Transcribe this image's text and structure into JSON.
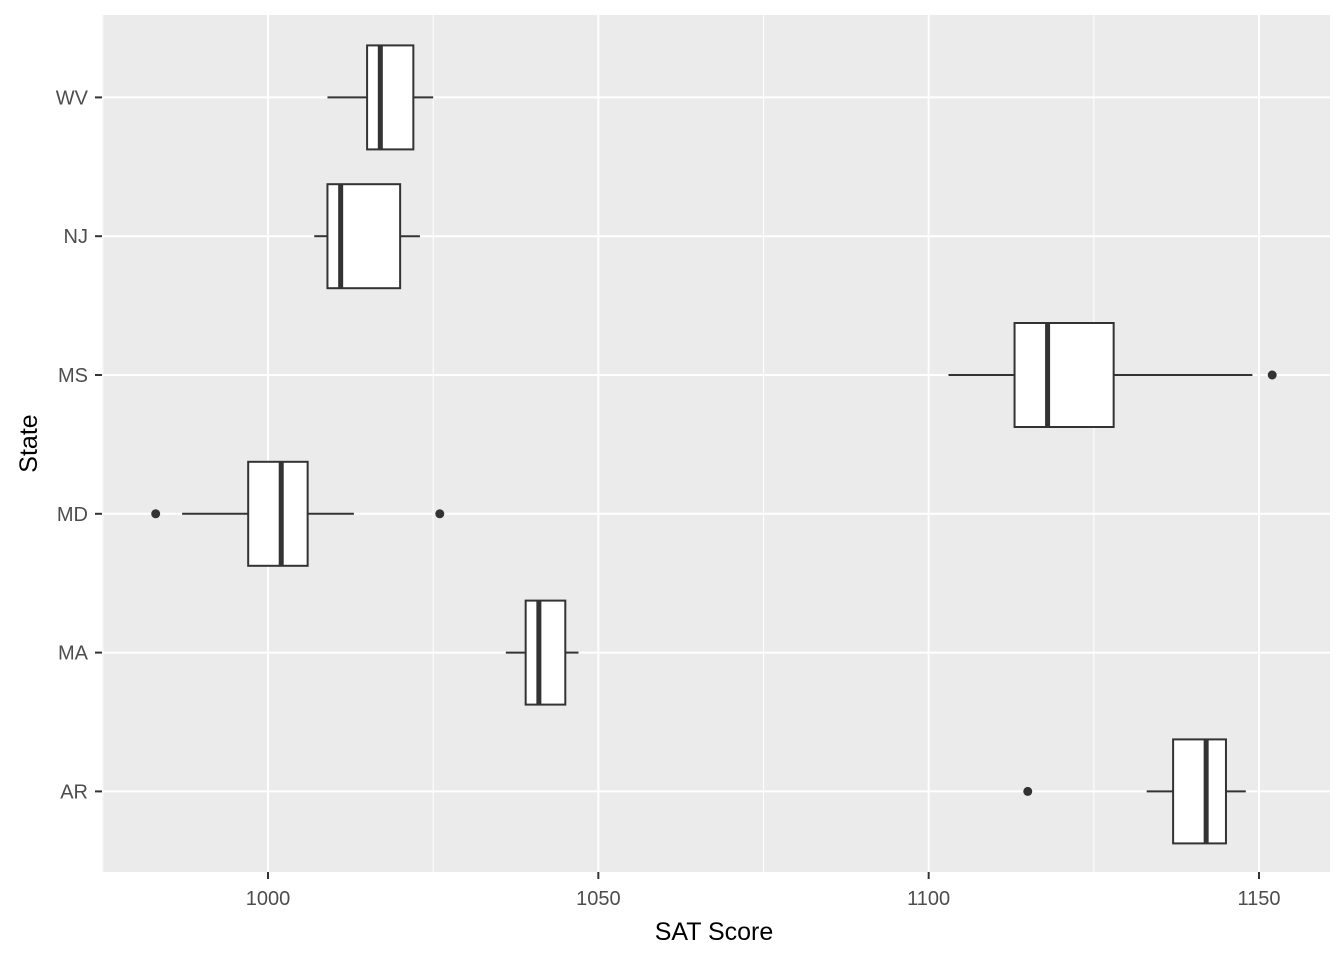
{
  "chart_data": {
    "type": "boxplot",
    "orientation": "horizontal",
    "xlabel": "SAT Score",
    "ylabel": "State",
    "xlim": [
      975,
      1160
    ],
    "xticks": [
      1000,
      1050,
      1100,
      1150
    ],
    "categories": [
      "AR",
      "MA",
      "MD",
      "MS",
      "NJ",
      "WV"
    ],
    "boxes": [
      {
        "category": "AR",
        "whisker_low": 1133,
        "q1": 1137,
        "median": 1142,
        "q3": 1145,
        "whisker_high": 1148,
        "outliers": [
          1115
        ]
      },
      {
        "category": "MA",
        "whisker_low": 1036,
        "q1": 1039,
        "median": 1041,
        "q3": 1045,
        "whisker_high": 1047,
        "outliers": []
      },
      {
        "category": "MD",
        "whisker_low": 987,
        "q1": 997,
        "median": 1002,
        "q3": 1006,
        "whisker_high": 1013,
        "outliers": [
          983,
          1026
        ]
      },
      {
        "category": "MS",
        "whisker_low": 1103,
        "q1": 1113,
        "median": 1118,
        "q3": 1128,
        "whisker_high": 1149,
        "outliers": [
          1152
        ]
      },
      {
        "category": "NJ",
        "whisker_low": 1007,
        "q1": 1009,
        "median": 1011,
        "q3": 1020,
        "whisker_high": 1023,
        "outliers": []
      },
      {
        "category": "WV",
        "whisker_low": 1009,
        "q1": 1015,
        "median": 1017,
        "q3": 1022,
        "whisker_high": 1025,
        "outliers": []
      }
    ],
    "grid": true,
    "colors": {
      "panel_background": "#ebebeb",
      "grid_major": "#ffffff",
      "box_fill": "#ffffff",
      "box_stroke": "#333333",
      "tick_label": "#4d4d4d",
      "axis_title": "#000000"
    }
  }
}
